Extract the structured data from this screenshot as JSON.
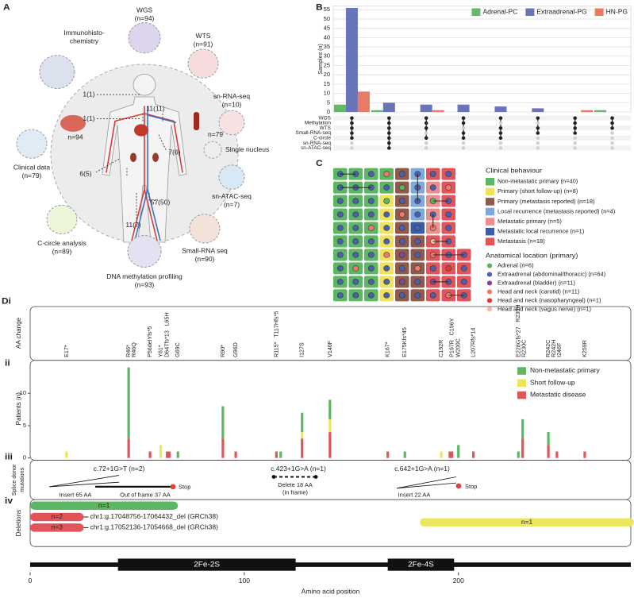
{
  "panel_a": {
    "label": "A",
    "assays": [
      {
        "lines": [
          "WGS"
        ],
        "n": "(n=94)"
      },
      {
        "lines": [
          "WTS"
        ],
        "n": "(n=91)"
      },
      {
        "lines": [
          "sn-RNA-seq"
        ],
        "n": "(n=10)"
      },
      {
        "lines": [
          "Single nucleus"
        ]
      },
      {
        "lines": [
          "sn-ATAC-seq"
        ],
        "n": "(n=7)"
      },
      {
        "lines": [
          "Small-RNA seq"
        ],
        "n": "(n=90)"
      },
      {
        "lines": [
          "DNA methylation profiling"
        ],
        "n": "(n=93)"
      },
      {
        "lines": [
          "C-circle analysis"
        ],
        "n": "(n=89)"
      },
      {
        "lines": [
          "Clinical data"
        ],
        "n": "(n=79)"
      },
      {
        "lines": [
          "Immunohisto-",
          "chemistry"
        ]
      }
    ],
    "sample_counts": [
      "n=94",
      "n=79"
    ],
    "site_counts": [
      "1(1)",
      "1(1)",
      "11(11)",
      "7(6)",
      "6(5)",
      "57(50)",
      "11(7)"
    ]
  },
  "panel_b": {
    "label": "B",
    "chart_data": {
      "type": "bar",
      "ylabel": "Samples (n)",
      "ylim": [
        0,
        57
      ],
      "yticks": [
        0,
        5,
        10,
        15,
        20,
        25,
        30,
        35,
        40,
        45,
        50,
        55
      ],
      "grid": true,
      "legend": "top-right",
      "series": [
        {
          "name": "Adrenal-PC",
          "color": "#63b96a",
          "values": [
            4,
            1,
            0,
            0,
            0,
            0,
            0,
            1
          ]
        },
        {
          "name": "Extraadrenal-PG",
          "color": "#6a74b9",
          "values": [
            56,
            5,
            4,
            4,
            3,
            2,
            0,
            0
          ]
        },
        {
          "name": "HN-PG",
          "color": "#ea7b62",
          "values": [
            11,
            0,
            1,
            0,
            0,
            0,
            1,
            0
          ]
        }
      ],
      "sets": [
        "WGS",
        "Methylation",
        "WTS",
        "Small-RNA-seq",
        "C-circle",
        "sn-RNA-seq",
        "sn-ATAC-seq"
      ],
      "membership": [
        [
          1,
          1,
          1,
          1,
          1,
          0,
          0
        ],
        [
          1,
          1,
          1,
          1,
          1,
          1,
          1
        ],
        [
          1,
          1,
          1,
          0,
          1,
          0,
          0
        ],
        [
          1,
          1,
          0,
          1,
          1,
          0,
          0
        ],
        [
          1,
          0,
          1,
          1,
          1,
          0,
          0
        ],
        [
          1,
          0,
          1,
          1,
          0,
          0,
          0
        ],
        [
          1,
          1,
          1,
          1,
          0,
          0,
          0
        ],
        [
          1,
          1,
          1,
          0,
          0,
          0,
          0
        ]
      ]
    }
  },
  "panel_c": {
    "label": "C",
    "clinical_title": "Clinical behaviour",
    "clinical": [
      {
        "name": "Non-metastatic primary (n=40)",
        "color": "#5db663"
      },
      {
        "name": "Primary (short follow-up) (n=8)",
        "color": "#f1e25c"
      },
      {
        "name": "Primary (metastasis reported) (n=18)",
        "color": "#8f5a4b"
      },
      {
        "name": "Local recurrence (metastasis reported) (n=4)",
        "color": "#80a8da"
      },
      {
        "name": "Metastatic primary (n=5)",
        "color": "#ec8e8c"
      },
      {
        "name": "Metastatic local recurrence (n=1)",
        "color": "#3a5da8"
      },
      {
        "name": "Metastasis (n=18)",
        "color": "#e0545a"
      }
    ],
    "location_title": "Anatomical location (primary)",
    "locations": [
      {
        "name": "Adrenal (n=6)",
        "color": "#5bb55c"
      },
      {
        "name": "Extraadrenal (abdominal/thoracic) (n=64)",
        "color": "#4c5fb0"
      },
      {
        "name": "Extraadrenal (bladder) (n=11)",
        "color": "#7b4a9b"
      },
      {
        "name": "Head and neck (carotid) (n=11)",
        "color": "#f07b6c"
      },
      {
        "name": "Head and neck (nasopharyngeal) (n=1)",
        "color": "#e33a36"
      },
      {
        "name": "Head and neck (vagus nerve) (n=1)",
        "color": "#f7bba5"
      }
    ],
    "grid": [
      [
        [
          0,
          1
        ],
        [
          0,
          1
        ],
        [
          0,
          1
        ],
        [
          0,
          3
        ],
        [
          2,
          1
        ],
        [
          3,
          1
        ],
        [
          6,
          1
        ],
        [
          6,
          1
        ]
      ],
      [
        [
          0,
          1
        ],
        [
          0,
          1
        ],
        [
          0,
          1
        ],
        [
          0,
          1
        ],
        [
          2,
          0
        ],
        [
          3,
          1
        ],
        [
          4,
          1
        ],
        [
          6,
          3
        ]
      ],
      [
        [
          0,
          1
        ],
        [
          0,
          1
        ],
        [
          0,
          1
        ],
        [
          1,
          0
        ],
        [
          2,
          1
        ],
        [
          3,
          1
        ],
        [
          4,
          0
        ],
        [
          6,
          1
        ]
      ],
      [
        [
          0,
          1
        ],
        [
          0,
          1
        ],
        [
          0,
          1
        ],
        [
          1,
          1
        ],
        [
          2,
          3
        ],
        [
          3,
          1
        ],
        [
          4,
          1
        ],
        [
          6,
          1
        ]
      ],
      [
        [
          0,
          1
        ],
        [
          0,
          1
        ],
        [
          0,
          3
        ],
        [
          1,
          1
        ],
        [
          2,
          1
        ],
        [
          5,
          1
        ],
        [
          4,
          3
        ],
        [
          6,
          1
        ]
      ],
      [
        [
          0,
          1
        ],
        [
          0,
          1
        ],
        [
          0,
          1
        ],
        [
          1,
          1
        ],
        [
          2,
          1
        ],
        [
          2,
          1
        ],
        [
          6,
          5
        ],
        [
          6,
          1
        ]
      ],
      [
        [
          0,
          1
        ],
        [
          0,
          1
        ],
        [
          0,
          1
        ],
        [
          1,
          3
        ],
        [
          2,
          2
        ],
        [
          2,
          1
        ],
        [
          6,
          3
        ],
        [
          6,
          1
        ],
        [
          6,
          1
        ]
      ],
      [
        [
          0,
          1
        ],
        [
          0,
          3
        ],
        [
          0,
          1
        ],
        [
          1,
          1
        ],
        [
          2,
          1
        ],
        [
          2,
          3
        ],
        [
          6,
          1
        ],
        [
          6,
          4
        ],
        [
          6,
          1
        ]
      ],
      [
        [
          0,
          1
        ],
        [
          0,
          1
        ],
        [
          0,
          1
        ],
        [
          1,
          1
        ],
        [
          2,
          2
        ],
        [
          2,
          1
        ],
        [
          6,
          2
        ],
        [
          6,
          1
        ],
        [
          6,
          1
        ]
      ],
      [
        [
          0,
          1
        ],
        [
          0,
          1
        ],
        [
          0,
          1
        ],
        [
          1,
          1
        ],
        [
          2,
          1
        ],
        [
          2,
          1
        ],
        [
          6,
          1
        ],
        [
          6,
          3
        ],
        [
          6,
          1
        ]
      ]
    ]
  },
  "panel_d": {
    "label": "Di",
    "aa_label": "AA change",
    "sub_labels": [
      "ii",
      "iii",
      "iv"
    ],
    "mutations": [
      {
        "text": "E17*",
        "position": 17
      },
      {
        "text": "R46*",
        "position": 46
      },
      {
        "text": "R46Q",
        "position": 46
      },
      {
        "text": "P56delYfs*5",
        "position": 56
      },
      {
        "text": "Y61*",
        "position": 61
      },
      {
        "text": "D64Tfs*13",
        "position": 64
      },
      {
        "text": "L65H",
        "position": 65
      },
      {
        "text": "G69C",
        "position": 69
      },
      {
        "text": "R90*",
        "position": 90
      },
      {
        "text": "G96D",
        "position": 96
      },
      {
        "text": "R115*",
        "position": 115
      },
      {
        "text": "T117Hfs*5",
        "position": 117
      },
      {
        "text": "I127S",
        "position": 127
      },
      {
        "text": "V140F",
        "position": 140
      },
      {
        "text": "K167*",
        "position": 167
      },
      {
        "text": "E175Kfs*45",
        "position": 175
      },
      {
        "text": "C192R",
        "position": 192
      },
      {
        "text": "P197R",
        "position": 197
      },
      {
        "text": "C196Y",
        "position": 196
      },
      {
        "text": "W200C",
        "position": 200
      },
      {
        "text": "L207Rfs*14",
        "position": 207
      },
      {
        "text": "E228Gfs*27",
        "position": 228
      },
      {
        "text": "R230H",
        "position": 230
      },
      {
        "text": "R230C",
        "position": 230
      },
      {
        "text": "R242C",
        "position": 242
      },
      {
        "text": "R242H",
        "position": 242
      },
      {
        "text": "I246F",
        "position": 246
      },
      {
        "text": "K259R",
        "position": 259
      }
    ],
    "chart_data": {
      "type": "bar",
      "ylabel": "Patients (n)",
      "ylim": [
        0,
        14.4
      ],
      "yticks": [
        0,
        5,
        10
      ],
      "legend": "top-right",
      "x": [
        17,
        46,
        56,
        61,
        64,
        65,
        69,
        90,
        96,
        115,
        117,
        127,
        140,
        167,
        175,
        192,
        196,
        197,
        200,
        207,
        228,
        230,
        242,
        246,
        259
      ],
      "series": [
        {
          "name": "Non-metastatic primary",
          "color": "#5db663",
          "values": [
            0,
            11,
            0,
            0,
            0,
            0,
            1,
            5,
            0,
            0,
            1,
            3,
            3,
            0,
            1,
            0,
            0,
            0,
            2,
            0,
            1,
            3,
            2,
            0,
            0
          ]
        },
        {
          "name": "Short follow-up",
          "color": "#ece65a",
          "values": [
            1,
            0,
            0,
            2,
            0,
            0,
            0,
            0,
            0,
            0,
            0,
            1,
            2,
            0,
            0,
            1,
            0,
            0,
            0,
            0,
            0,
            0,
            0,
            0,
            0
          ]
        },
        {
          "name": "Metastatic disease",
          "color": "#e0545a",
          "values": [
            0,
            3,
            1,
            0,
            1,
            1,
            0,
            3,
            1,
            1,
            0,
            3,
            4,
            1,
            0,
            0,
            1,
            1,
            0,
            1,
            0,
            3,
            2,
            1,
            1
          ]
        }
      ]
    },
    "splice_label": [
      "Splice donor",
      "mutations"
    ],
    "splice": [
      {
        "label": "c.72+1G>T (n=2)",
        "notes": [
          "Insert 65 AA",
          "Out of frame 37 AA",
          "Stop"
        ]
      },
      {
        "label": "c.423+1G>A (n=1)",
        "notes": [
          "Delete 18 AA",
          "(in frame)"
        ]
      },
      {
        "label": "c.642+1G>A (n=1)",
        "notes": [
          "Insert 22 AA",
          "Stop"
        ]
      }
    ],
    "deletions_label": "Deletions",
    "deletions": [
      {
        "label": "n=1",
        "start": 0,
        "end": 69,
        "color": "#5db663"
      },
      {
        "label": "n=2",
        "start": 0,
        "end": 25,
        "color": "#e0545a",
        "description": "chr1:g.17048756-17064432_del (GRCh38)"
      },
      {
        "label": "n=3",
        "start": 0,
        "end": 25,
        "color": "#e0545a",
        "description": "chr1:g.17052136-17054668_del (GRCh38)"
      },
      {
        "label": "n=1",
        "start": 182,
        "end": 282,
        "color": "#ece65a"
      }
    ],
    "domains": [
      {
        "name": "2Fe-2S",
        "start": 41,
        "end": 124
      },
      {
        "name": "2Fe-4S",
        "start": 167,
        "end": 198
      }
    ],
    "xlim": [
      0,
      282
    ],
    "xticks": [
      0,
      100,
      200
    ],
    "xlabel": "Amino acid position"
  }
}
